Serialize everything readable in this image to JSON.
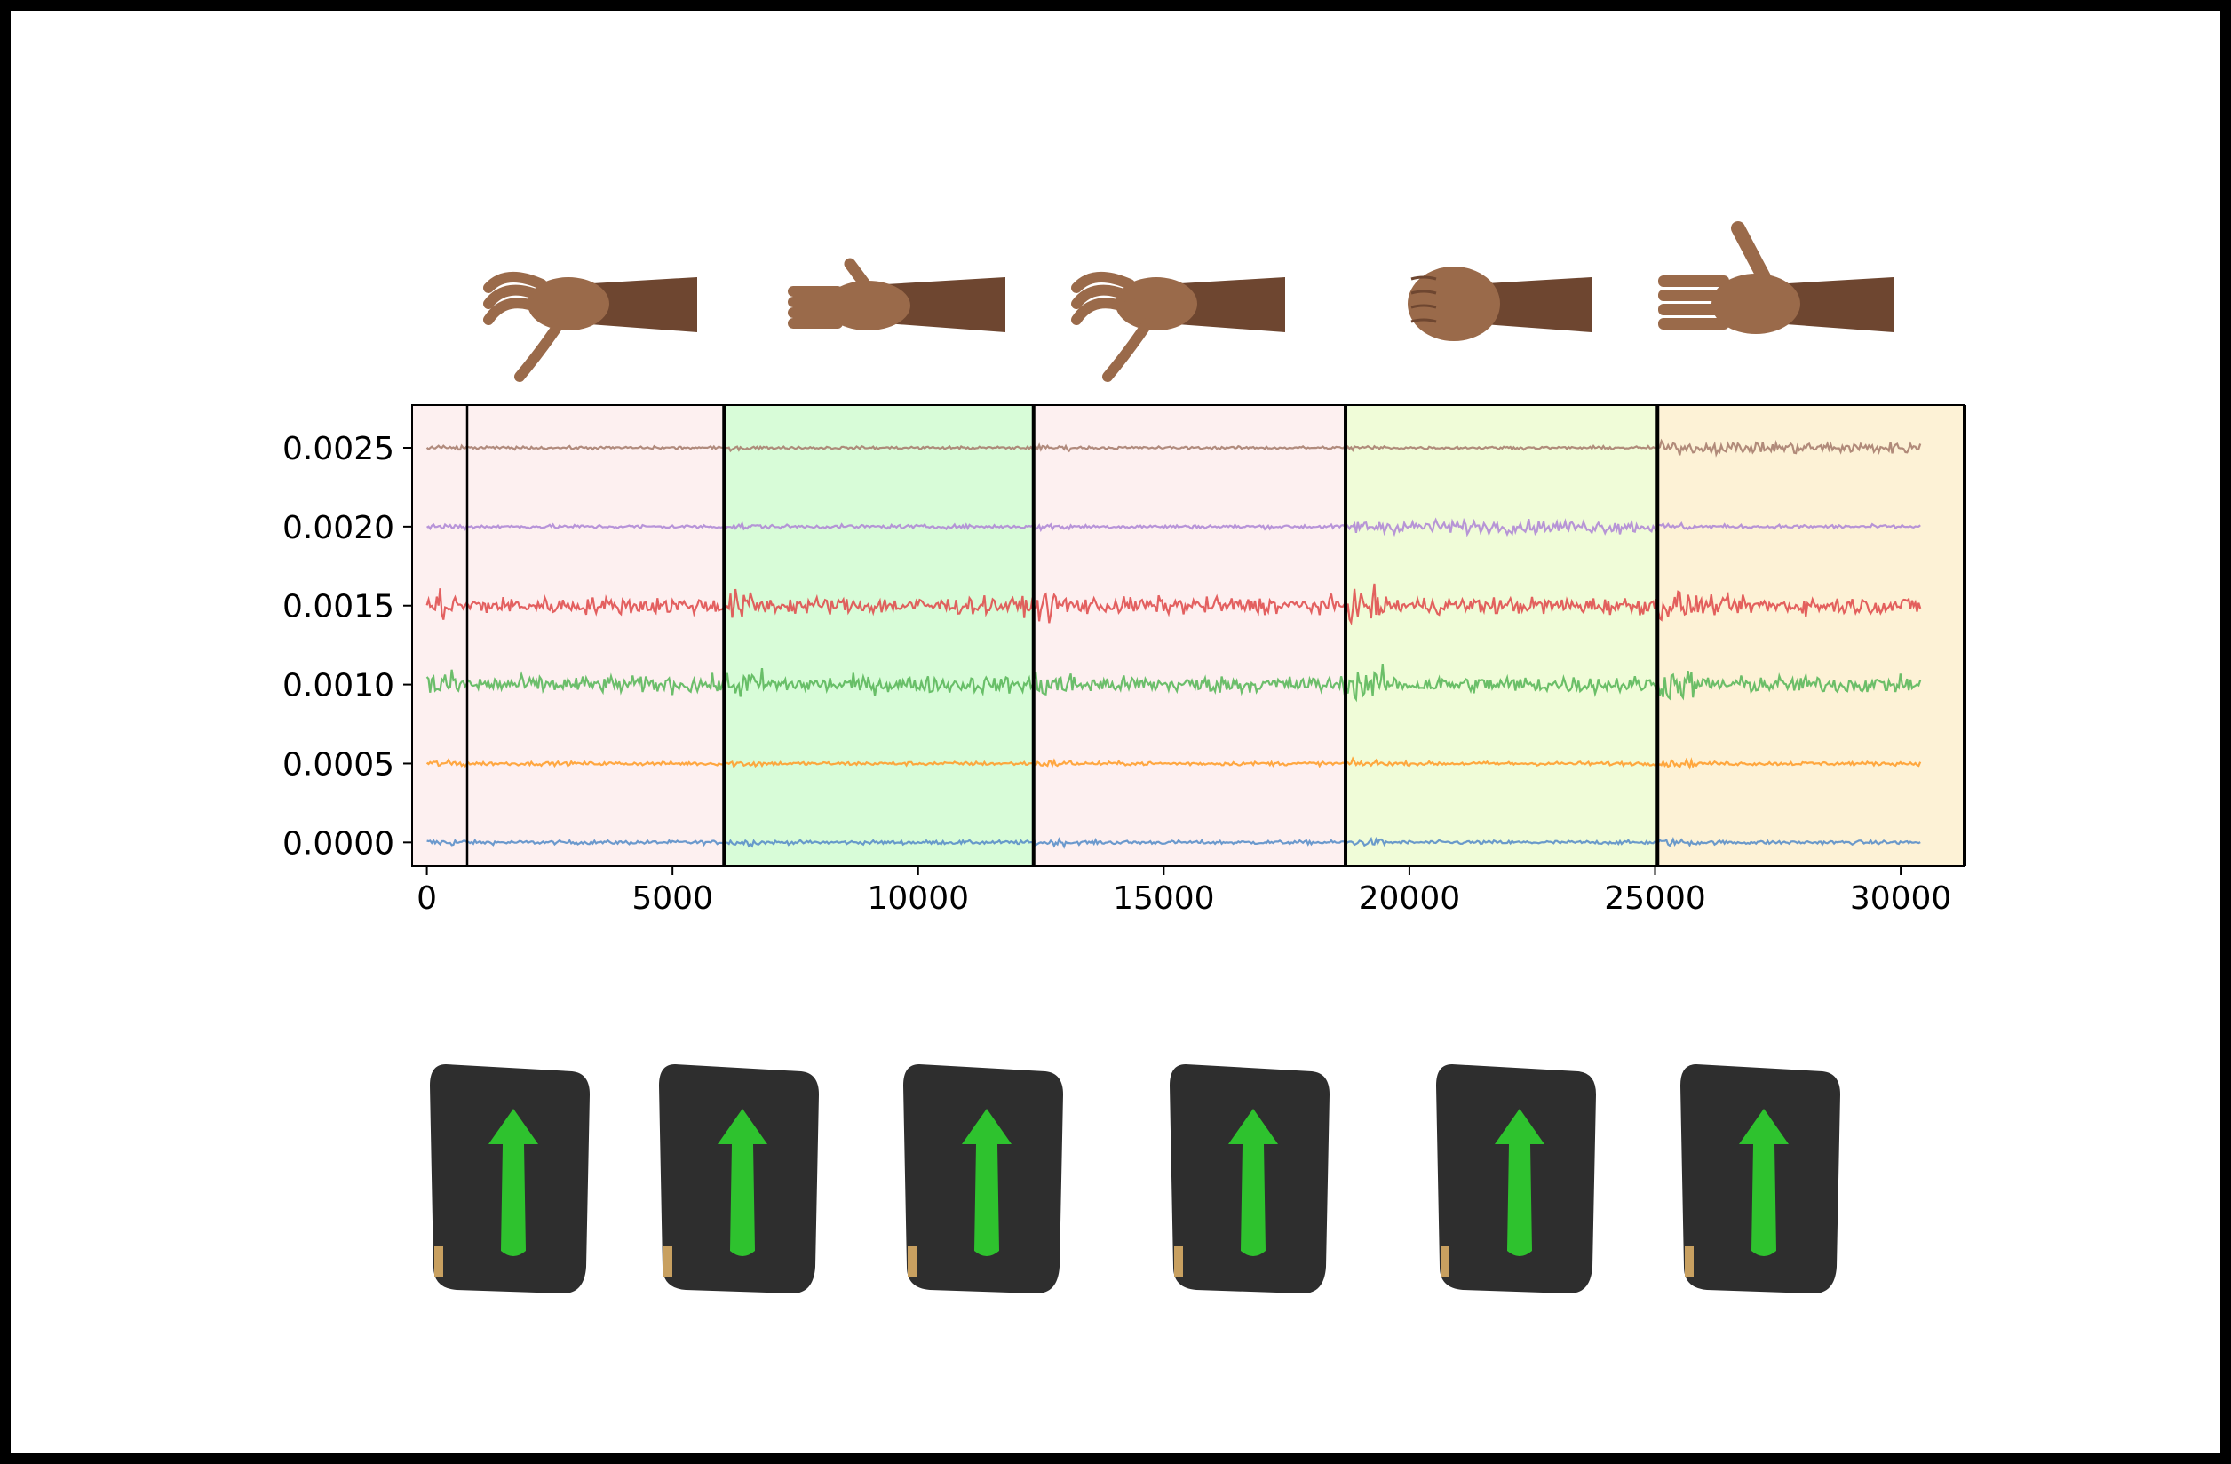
{
  "chart_data": {
    "type": "line",
    "title": "",
    "xlabel": "",
    "ylabel": "",
    "xlim": [
      -300,
      31300
    ],
    "ylim": [
      -0.00015,
      0.00277
    ],
    "xticks": [
      0,
      5000,
      10000,
      15000,
      20000,
      25000,
      30000
    ],
    "xtick_labels": [
      "0",
      "5000",
      "10000",
      "15000",
      "20000",
      "25000",
      "30000"
    ],
    "yticks": [
      0.0,
      0.0005,
      0.001,
      0.0015,
      0.002,
      0.0025
    ],
    "ytick_labels": [
      "0.0000",
      "0.0005",
      "0.0010",
      "0.0015",
      "0.0020",
      "0.0025"
    ],
    "grid": false,
    "n_samples": 30400,
    "segments": [
      {
        "gesture": "grasp",
        "x_start": -300,
        "x_end": 6050,
        "color": "#fdf0f0"
      },
      {
        "gesture": "relaxed",
        "x_start": 6050,
        "x_end": 12350,
        "color": "#d8fcd8"
      },
      {
        "gesture": "grasp",
        "x_start": 12350,
        "x_end": 18700,
        "color": "#fdf0f0"
      },
      {
        "gesture": "fist",
        "x_start": 18700,
        "x_end": 25050,
        "color": "#f0fcd8"
      },
      {
        "gesture": "open-hand",
        "x_start": 25050,
        "x_end": 31300,
        "color": "#fdf2d6"
      }
    ],
    "boundaries": [
      6050,
      12350,
      18700,
      25050,
      31300
    ],
    "series": [
      {
        "offset": 0.0,
        "color": "#5b8fc9",
        "amplitude": 2e-05
      },
      {
        "offset": 0.0005,
        "color": "#ff9f2e",
        "amplitude": 2e-05
      },
      {
        "offset": 0.001,
        "color": "#5cb85c",
        "amplitude": 9e-05
      },
      {
        "offset": 0.0015,
        "color": "#e05050",
        "amplitude": 9e-05
      },
      {
        "offset": 0.002,
        "color": "#b08ad6",
        "amplitude": 2e-05
      },
      {
        "offset": 0.0025,
        "color": "#a88070",
        "amplitude": 1.5e-05
      }
    ]
  },
  "gestures": [
    "grasp",
    "relaxed",
    "grasp",
    "fist",
    "open-hand"
  ],
  "sensors": {
    "count": 6,
    "body_color": "#2e2e2e",
    "arrow_color": "#2ec22e"
  }
}
